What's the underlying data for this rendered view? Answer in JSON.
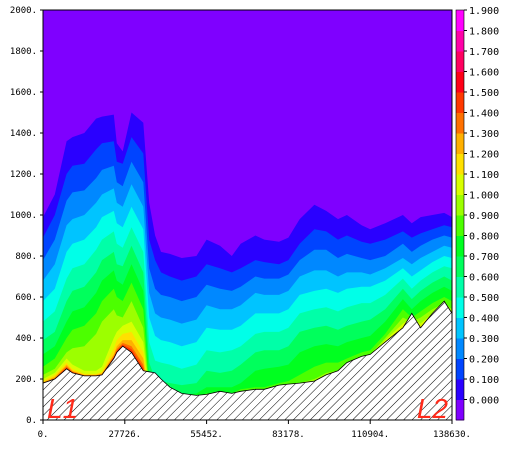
{
  "chart_data": {
    "type": "heatmap",
    "title": "",
    "xlabel": "",
    "ylabel": "",
    "xlim": [
      0,
      138630
    ],
    "ylim": [
      0,
      2000
    ],
    "x_ticks": [
      "0.",
      "27726.",
      "55452.",
      "83178.",
      "110904.",
      "138630."
    ],
    "y_ticks": [
      "0.",
      "200.",
      "400.",
      "600.",
      "800.",
      "1000.",
      "1200.",
      "1400.",
      "1600.",
      "1800.",
      "2000."
    ],
    "colorbar": {
      "labels": [
        "0.000",
        "0.100",
        "0.200",
        "0.300",
        "0.400",
        "0.500",
        "0.600",
        "0.700",
        "0.800",
        "0.900",
        "1.000",
        "1.100",
        "1.200",
        "1.300",
        "1.400",
        "1.500",
        "1.600",
        "1.700",
        "1.800",
        "1.900"
      ],
      "colors": [
        "#7f00ff",
        "#2a00ff",
        "#0044ff",
        "#0088ff",
        "#00c4ff",
        "#00ffe8",
        "#00ffa8",
        "#00ff5c",
        "#00ff20",
        "#4cff00",
        "#9cff00",
        "#d8ff00",
        "#ffe000",
        "#ffb000",
        "#ff7000",
        "#ff3800",
        "#ff0018",
        "#ff0060",
        "#ff00a8",
        "#ff00ff"
      ]
    },
    "markers": [
      {
        "label": "L1",
        "x": 0
      },
      {
        "label": "L2",
        "x": 138630
      }
    ],
    "terrain": {
      "x": [
        0,
        4000,
        8000,
        10000,
        14000,
        18000,
        20000,
        24000,
        25000,
        27000,
        30000,
        34000,
        36000,
        38000,
        40000,
        43000,
        47000,
        52000,
        55452,
        60000,
        64000,
        67000,
        72000,
        75000,
        80000,
        83178,
        87000,
        92000,
        96000,
        100000,
        103000,
        108000,
        110904,
        116000,
        122000,
        125000,
        128000,
        132000,
        136000,
        138630
      ],
      "y": [
        180,
        200,
        250,
        230,
        215,
        215,
        220,
        300,
        330,
        360,
        330,
        240,
        235,
        230,
        200,
        160,
        130,
        120,
        125,
        140,
        130,
        140,
        150,
        150,
        170,
        175,
        180,
        190,
        220,
        240,
        280,
        310,
        320,
        380,
        450,
        520,
        450,
        520,
        580,
        520
      ]
    },
    "levels": [
      {
        "value": 0.1,
        "y": [
          990,
          1100,
          1360,
          1380,
          1400,
          1470,
          1480,
          1490,
          1350,
          1310,
          1500,
          1450,
          1060,
          900,
          820,
          810,
          790,
          800,
          880,
          850,
          800,
          860,
          900,
          880,
          870,
          890,
          980,
          1050,
          1020,
          980,
          1000,
          950,
          930,
          960,
          1000,
          960,
          990,
          1000,
          1010,
          990
        ]
      },
      {
        "value": 0.2,
        "y": [
          890,
          1000,
          1200,
          1240,
          1250,
          1320,
          1350,
          1360,
          1260,
          1250,
          1380,
          1300,
          880,
          780,
          720,
          700,
          680,
          700,
          760,
          740,
          720,
          740,
          780,
          770,
          760,
          780,
          860,
          930,
          920,
          880,
          900,
          870,
          860,
          880,
          920,
          890,
          910,
          930,
          950,
          940
        ]
      },
      {
        "value": 0.3,
        "y": [
          780,
          880,
          1070,
          1110,
          1120,
          1180,
          1220,
          1240,
          1160,
          1140,
          1260,
          1160,
          740,
          640,
          610,
          600,
          580,
          600,
          660,
          640,
          630,
          650,
          700,
          690,
          690,
          710,
          780,
          830,
          830,
          790,
          810,
          790,
          780,
          800,
          860,
          820,
          850,
          880,
          900,
          890
        ]
      },
      {
        "value": 0.4,
        "y": [
          680,
          760,
          950,
          980,
          1000,
          1060,
          1100,
          1130,
          1060,
          1040,
          1150,
          1040,
          620,
          520,
          500,
          490,
          470,
          490,
          560,
          540,
          540,
          560,
          620,
          610,
          610,
          630,
          700,
          730,
          730,
          700,
          720,
          720,
          710,
          740,
          790,
          760,
          790,
          820,
          850,
          840
        ]
      },
      {
        "value": 0.5,
        "y": [
          580,
          640,
          820,
          860,
          880,
          940,
          990,
          1020,
          960,
          940,
          1040,
          930,
          500,
          410,
          390,
          380,
          360,
          380,
          450,
          440,
          440,
          460,
          520,
          520,
          520,
          540,
          610,
          630,
          640,
          620,
          640,
          650,
          650,
          680,
          740,
          700,
          730,
          770,
          800,
          790
        ]
      },
      {
        "value": 0.6,
        "y": [
          480,
          530,
          690,
          740,
          760,
          830,
          880,
          920,
          860,
          840,
          940,
          820,
          380,
          290,
          280,
          270,
          250,
          270,
          340,
          330,
          340,
          360,
          420,
          430,
          430,
          450,
          520,
          540,
          550,
          530,
          550,
          570,
          570,
          610,
          690,
          640,
          680,
          720,
          750,
          740
        ]
      },
      {
        "value": 0.7,
        "y": [
          390,
          430,
          580,
          630,
          650,
          720,
          780,
          820,
          760,
          750,
          850,
          720,
          280,
          200,
          190,
          180,
          170,
          180,
          240,
          230,
          240,
          270,
          330,
          340,
          340,
          360,
          430,
          450,
          460,
          440,
          460,
          480,
          490,
          540,
          640,
          590,
          630,
          670,
          700,
          680
        ]
      },
      {
        "value": 0.8,
        "y": [
          320,
          360,
          480,
          530,
          550,
          620,
          680,
          730,
          680,
          660,
          760,
          630,
          200,
          160,
          140,
          130,
          120,
          130,
          160,
          160,
          160,
          180,
          240,
          250,
          260,
          270,
          330,
          360,
          370,
          360,
          380,
          400,
          410,
          480,
          590,
          540,
          580,
          620,
          650,
          630
        ]
      },
      {
        "value": 0.9,
        "y": [
          260,
          300,
          400,
          440,
          460,
          520,
          580,
          640,
          600,
          580,
          670,
          540,
          160,
          130,
          120,
          110,
          100,
          110,
          130,
          130,
          130,
          150,
          160,
          160,
          180,
          190,
          220,
          260,
          280,
          280,
          300,
          330,
          340,
          420,
          540,
          500,
          530,
          570,
          600,
          580
        ]
      },
      {
        "value": 1.0,
        "y": [
          220,
          250,
          330,
          350,
          360,
          420,
          480,
          540,
          510,
          500,
          580,
          450,
          140,
          110,
          100,
          90,
          90,
          100,
          110,
          110,
          110,
          130,
          140,
          140,
          160,
          170,
          180,
          200,
          230,
          240,
          270,
          310,
          320,
          400,
          500,
          480,
          500,
          540,
          570,
          540
        ]
      },
      {
        "value": 1.1,
        "y": [
          200,
          230,
          300,
          270,
          240,
          240,
          260,
          400,
          430,
          460,
          480,
          380,
          130,
          100,
          90,
          80,
          80,
          90,
          100,
          100,
          100,
          120,
          130,
          130,
          150,
          160,
          170,
          180,
          210,
          230,
          260,
          300,
          310,
          390,
          470,
          500,
          470,
          520,
          560,
          530
        ]
      },
      {
        "value": 1.2,
        "y": [
          190,
          220,
          280,
          250,
          225,
          225,
          235,
          350,
          390,
          420,
          430,
          330,
          120,
          90,
          80,
          70,
          70,
          80,
          90,
          90,
          90,
          110,
          120,
          120,
          140,
          150,
          160,
          170,
          200,
          220,
          250,
          290,
          300,
          380,
          455,
          510,
          455,
          515,
          570,
          525
        ]
      },
      {
        "value": 1.3,
        "y": [
          185,
          210,
          270,
          240,
          220,
          220,
          228,
          320,
          360,
          390,
          390,
          300,
          110,
          80,
          70,
          60,
          60,
          70,
          80,
          80,
          80,
          100,
          110,
          110,
          130,
          140,
          150,
          160,
          190,
          210,
          240,
          280,
          290,
          375,
          450,
          515,
          452,
          518,
          575,
          522
        ]
      },
      {
        "value": 1.4,
        "y": [
          182,
          205,
          262,
          236,
          218,
          218,
          224,
          312,
          346,
          376,
          360,
          270,
          100,
          70,
          60,
          50,
          50,
          60,
          70,
          70,
          70,
          90,
          100,
          100,
          120,
          130,
          140,
          150,
          180,
          200,
          230,
          270,
          280,
          370,
          448,
          518,
          451,
          519,
          577,
          521
        ]
      },
      {
        "value": 1.5,
        "y": [
          181,
          202,
          256,
          233,
          216,
          216,
          222,
          306,
          338,
          368,
          345,
          255,
          90,
          60,
          50,
          40,
          40,
          50,
          60,
          60,
          60,
          80,
          90,
          90,
          110,
          120,
          130,
          140,
          170,
          190,
          220,
          260,
          270,
          365,
          447,
          519,
          450,
          519,
          578,
          520
        ]
      }
    ]
  }
}
